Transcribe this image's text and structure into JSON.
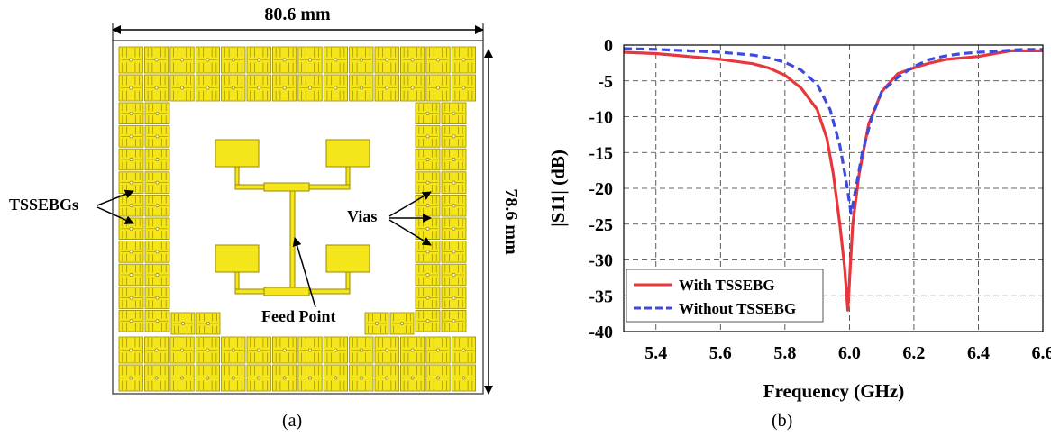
{
  "figure": {
    "panel_a": {
      "caption": "(a)",
      "width_label": "80.6 mm",
      "height_label": "78.6 mm",
      "label_tssebgs": "TSSEBGs",
      "label_vias": "Vias",
      "label_feed": "Feed Point",
      "colors": {
        "ebg": "#f5e51b",
        "ebg_stroke": "#9a8a00",
        "background": "#ffffff"
      }
    },
    "panel_b": {
      "caption": "(b)"
    }
  },
  "chart_data": {
    "type": "line",
    "xlabel": "Frequency (GHz)",
    "ylabel": "|S11| (dB)",
    "xlim": [
      5.3,
      6.6
    ],
    "ylim": [
      -40,
      0
    ],
    "xticks": [
      "5.4",
      "5.6",
      "5.8",
      "6.0",
      "6.2",
      "6.4",
      "6.6"
    ],
    "yticks": [
      "0",
      "-5",
      "-10",
      "-15",
      "-20",
      "-25",
      "-30",
      "-35",
      "-40"
    ],
    "grid": true,
    "legend_position": "bottom-left",
    "series": [
      {
        "name": "With TSSEBG",
        "color": "#e8373c",
        "dash": "solid",
        "points": [
          [
            5.3,
            -1.0
          ],
          [
            5.4,
            -1.2
          ],
          [
            5.5,
            -1.6
          ],
          [
            5.6,
            -2.0
          ],
          [
            5.7,
            -2.6
          ],
          [
            5.75,
            -3.2
          ],
          [
            5.8,
            -4.2
          ],
          [
            5.85,
            -6.0
          ],
          [
            5.9,
            -9.0
          ],
          [
            5.93,
            -13.0
          ],
          [
            5.95,
            -18.0
          ],
          [
            5.97,
            -25.0
          ],
          [
            5.985,
            -31.0
          ],
          [
            5.995,
            -37.0
          ],
          [
            6.0,
            -33.0
          ],
          [
            6.01,
            -25.0
          ],
          [
            6.03,
            -18.0
          ],
          [
            6.06,
            -11.0
          ],
          [
            6.1,
            -6.5
          ],
          [
            6.15,
            -4.0
          ],
          [
            6.2,
            -3.2
          ],
          [
            6.25,
            -2.5
          ],
          [
            6.3,
            -2.0
          ],
          [
            6.35,
            -1.8
          ],
          [
            6.4,
            -1.6
          ],
          [
            6.45,
            -1.2
          ],
          [
            6.5,
            -0.8
          ],
          [
            6.55,
            -0.8
          ],
          [
            6.6,
            -0.8
          ]
        ]
      },
      {
        "name": "Without TSSEBG",
        "color": "#3c4bde",
        "dash": "dashed",
        "points": [
          [
            5.3,
            -0.5
          ],
          [
            5.4,
            -0.6
          ],
          [
            5.5,
            -0.8
          ],
          [
            5.6,
            -1.0
          ],
          [
            5.7,
            -1.4
          ],
          [
            5.75,
            -1.8
          ],
          [
            5.8,
            -2.4
          ],
          [
            5.85,
            -3.5
          ],
          [
            5.9,
            -5.5
          ],
          [
            5.94,
            -9.0
          ],
          [
            5.97,
            -14.0
          ],
          [
            5.99,
            -19.0
          ],
          [
            6.005,
            -23.5
          ],
          [
            6.02,
            -20.0
          ],
          [
            6.04,
            -15.0
          ],
          [
            6.07,
            -10.0
          ],
          [
            6.1,
            -6.5
          ],
          [
            6.15,
            -4.5
          ],
          [
            6.2,
            -3.0
          ],
          [
            6.25,
            -2.0
          ],
          [
            6.3,
            -1.5
          ],
          [
            6.35,
            -1.2
          ],
          [
            6.4,
            -1.0
          ],
          [
            6.45,
            -0.9
          ],
          [
            6.5,
            -0.7
          ],
          [
            6.55,
            -0.6
          ],
          [
            6.6,
            -0.6
          ]
        ]
      }
    ]
  }
}
